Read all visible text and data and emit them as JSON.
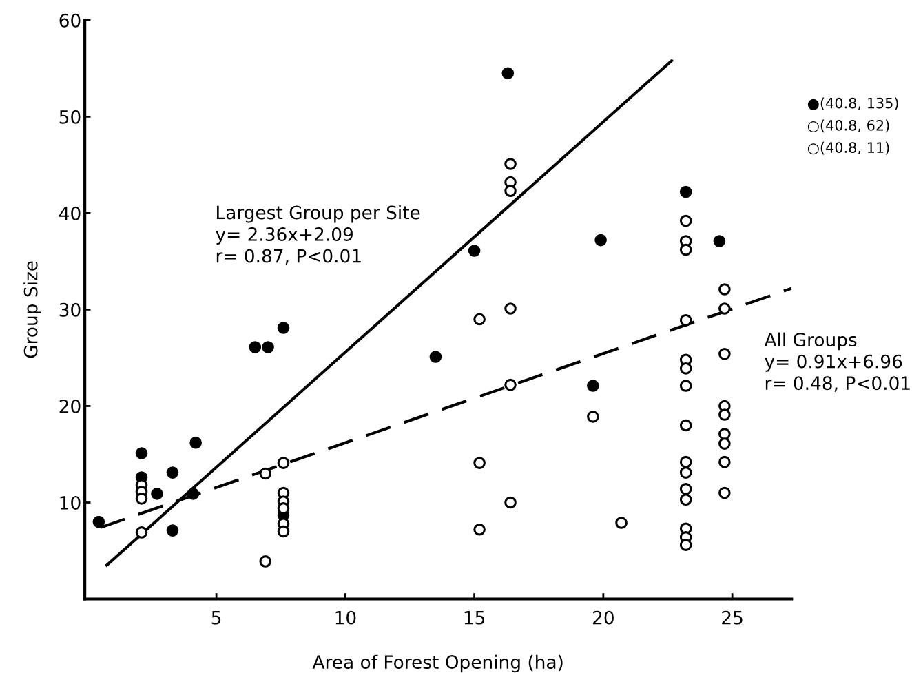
{
  "chart_data": {
    "type": "scatter",
    "xlabel": "Area of Forest Opening (ha)",
    "ylabel": "Group Size",
    "xlim": [
      -0.1,
      27.3
    ],
    "ylim": [
      0,
      60
    ],
    "xticks": [
      5,
      10,
      15,
      20,
      25
    ],
    "yticks": [
      10,
      20,
      30,
      40,
      50,
      60
    ],
    "grid": false,
    "series": [
      {
        "color": "#000000",
        "marker": "circle",
        "x": [
          0.44,
          2.1,
          2.1,
          2.7,
          3.3,
          3.3,
          4.2,
          4.1,
          6.5,
          7.0,
          7.6,
          7.6,
          13.5,
          15.0,
          16.3,
          19.6,
          19.9,
          23.2,
          24.5
        ],
        "values": [
          8.0,
          15.1,
          12.6,
          10.9,
          13.1,
          7.1,
          16.2,
          10.9,
          26.1,
          26.1,
          28.1,
          8.7,
          25.1,
          36.1,
          54.5,
          22.1,
          37.2,
          42.2,
          37.1
        ]
      },
      {
        "color": "#ffffff",
        "marker": "circle",
        "x": [
          2.1,
          2.1,
          2.1,
          2.1,
          6.9,
          6.9,
          7.6,
          7.6,
          7.6,
          7.6,
          7.6,
          7.6,
          15.2,
          15.2,
          15.2,
          16.4,
          16.4,
          16.4,
          16.4,
          16.4,
          16.4,
          19.6,
          20.7,
          23.2,
          23.2,
          23.2,
          23.2,
          23.2,
          23.2,
          23.2,
          23.2,
          23.2,
          23.2,
          23.2,
          23.2,
          23.2,
          23.2,
          23.2,
          24.7,
          24.7,
          24.7,
          24.7,
          24.7,
          24.7,
          24.7,
          24.7,
          24.7
        ],
        "values": [
          11.8,
          11.1,
          10.4,
          6.9,
          13.0,
          3.9,
          14.1,
          11.0,
          10.1,
          9.4,
          7.8,
          7.0,
          29.0,
          14.1,
          7.2,
          45.1,
          43.2,
          42.3,
          30.1,
          22.2,
          10.0,
          18.9,
          7.9,
          39.2,
          37.1,
          36.2,
          28.9,
          24.8,
          23.9,
          22.1,
          18.0,
          14.2,
          13.1,
          11.4,
          10.3,
          7.3,
          6.4,
          5.6,
          32.1,
          30.1,
          25.4,
          20.0,
          19.1,
          17.1,
          16.1,
          14.2,
          11.0
        ]
      },
      {
        "type": "line",
        "marker": "none",
        "line_style": "solid",
        "color": "#000000",
        "x": [
          0.75,
          22.65
        ],
        "values": [
          3.5,
          55.8
        ]
      },
      {
        "type": "line",
        "marker": "none",
        "line_style": "dashed",
        "color": "#000000",
        "x": [
          0.5,
          27.3
        ],
        "values": [
          7.4,
          32.2
        ]
      }
    ],
    "annotations": [
      "Largest Group per Site\ny= 2.36x+2.09\nr= 0.87, P<0.01",
      "All Groups\ny= 0.91x+6.96\nr= 0.48, P<0.01",
      "●(40.8, 135)",
      "○(40.8, 62)",
      "○(40.8, 11)"
    ]
  }
}
